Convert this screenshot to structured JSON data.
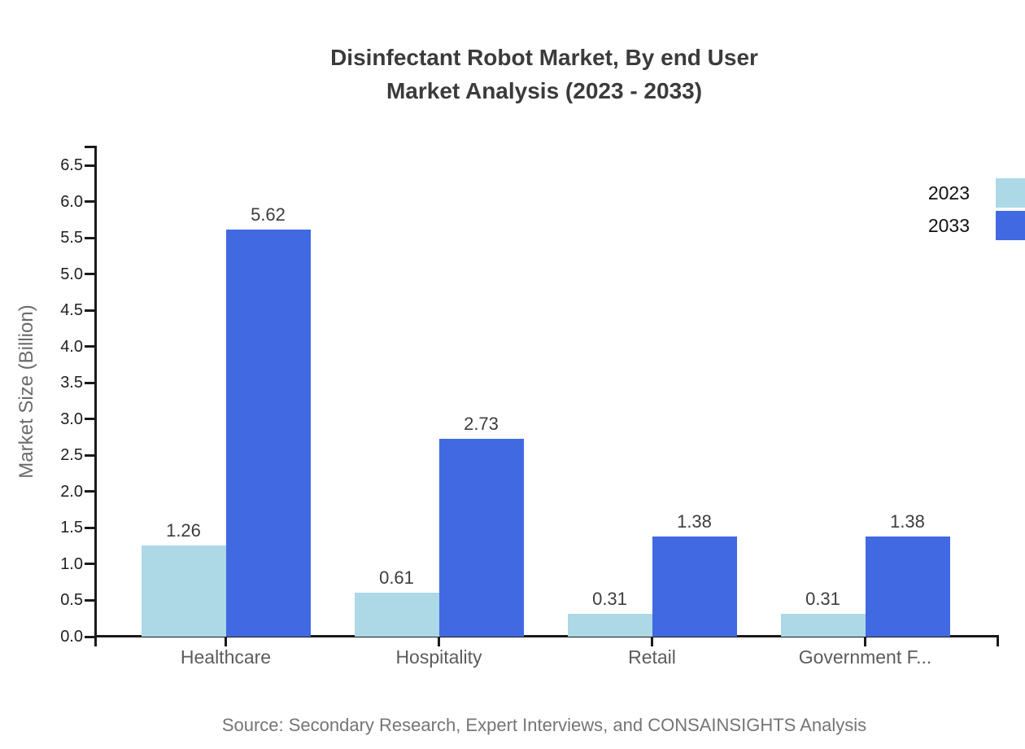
{
  "page": {
    "background": "#ffffff"
  },
  "chart_data": {
    "type": "bar",
    "title": "Disinfectant Robot Market, By end User Market Analysis (2023 - 2033)",
    "title_lines": [
      "Disinfectant Robot Market, By end User",
      "Market Analysis (2023 - 2033)"
    ],
    "categories": [
      "Healthcare",
      "Hospitality",
      "Retail",
      "Government F..."
    ],
    "series": [
      {
        "name": "2023",
        "color": "#add8e6",
        "values": [
          1.26,
          0.61,
          0.31,
          0.31
        ]
      },
      {
        "name": "2033",
        "color": "#4169e1",
        "values": [
          5.62,
          2.73,
          1.38,
          1.38
        ]
      }
    ],
    "xlabel": "",
    "ylabel": "Market Size (Billion)",
    "ylim": [
      0,
      6.76
    ],
    "yticks": [
      "0.0",
      "0.5",
      "1.0",
      "1.5",
      "2.0",
      "2.5",
      "3.0",
      "3.5",
      "4.0",
      "4.5",
      "5.0",
      "5.5",
      "6.0",
      "6.5"
    ],
    "grid": false,
    "legend_position": "top-right",
    "value_labels": true,
    "axis_color": "#1a1a1a",
    "source": "Source: Secondary Research, Expert Interviews, and CONSAINSIGHTS Analysis"
  }
}
